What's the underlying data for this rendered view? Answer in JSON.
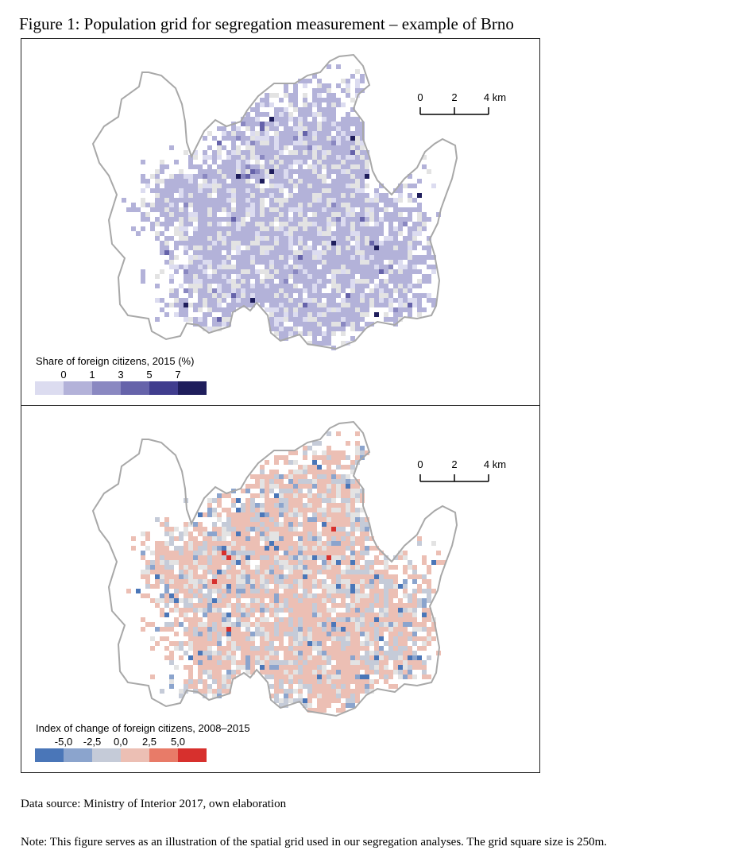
{
  "figure": {
    "title": "Figure 1: Population grid for segregation measurement – example of Brno"
  },
  "panels": [
    {
      "id": "share",
      "scalebar": {
        "labels": [
          "0",
          "2",
          "4 km"
        ]
      },
      "legend": {
        "title": "Share of foreign citizens, 2015 (%)",
        "ticks": [
          "0",
          "1",
          "3",
          "5",
          "7"
        ],
        "colors": [
          "#dcdcf0",
          "#b3b2d9",
          "#8a88c1",
          "#6663aa",
          "#403d8e",
          "#1f1e5c"
        ]
      },
      "no_data_color": "#e3e3e3",
      "outline_color": "#a8a8a8"
    },
    {
      "id": "change",
      "scalebar": {
        "labels": [
          "0",
          "2",
          "4 km"
        ]
      },
      "legend": {
        "title": "Index of change of foreign citizens, 2008–2015",
        "ticks": [
          "-5,0",
          "-2,5",
          "0,0",
          "2,5",
          "5,0"
        ],
        "colors": [
          "#4a76b8",
          "#8ba4cd",
          "#c5cbd8",
          "#ecbfb4",
          "#e87b68",
          "#d7302d"
        ]
      },
      "no_data_color": "#e3e3e3",
      "outline_color": "#a8a8a8"
    }
  ],
  "footer": {
    "source": "Data source: Ministry of Interior 2017, own elaboration",
    "note": "Note: This figure serves as an illustration of the spatial grid used in our segregation analyses. The grid square size is 250m."
  }
}
